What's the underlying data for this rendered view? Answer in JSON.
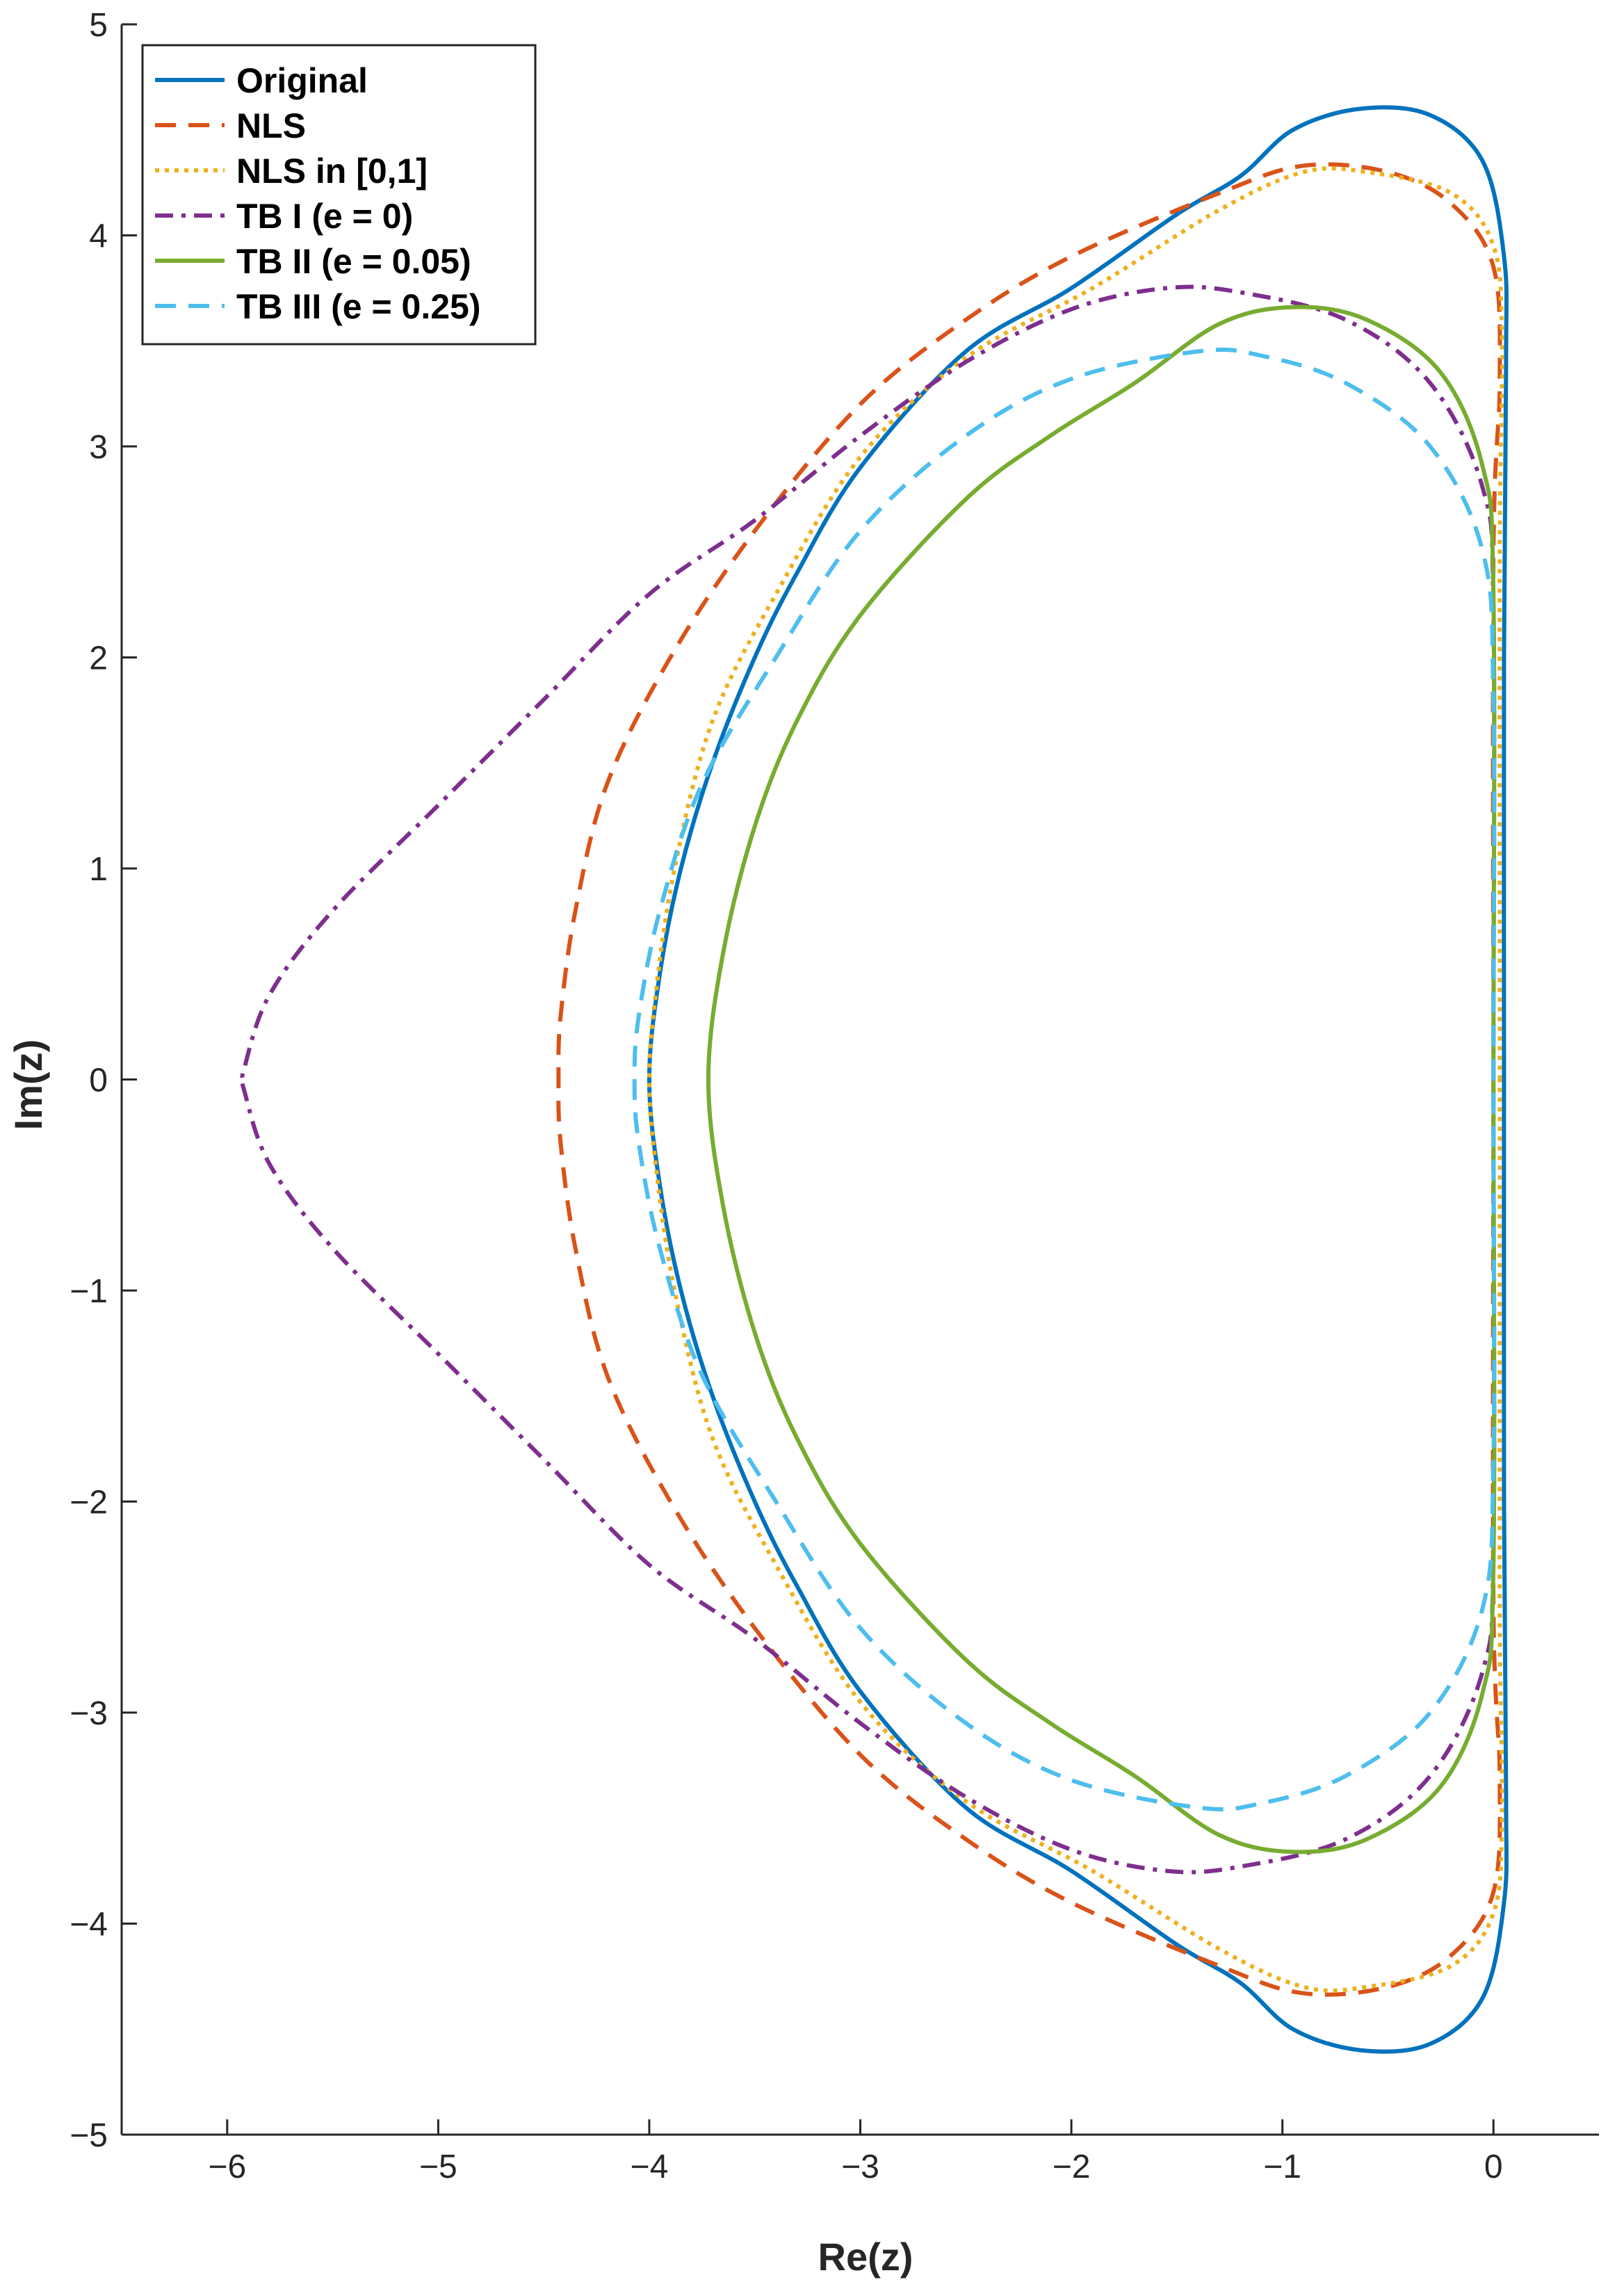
{
  "chart_data": {
    "type": "line",
    "xlabel": "Re(z)",
    "ylabel": "Im(z)",
    "xlim": [
      -6.5,
      0.5
    ],
    "ylim": [
      -5,
      5
    ],
    "xticks": [
      -6,
      -5,
      -4,
      -3,
      -2,
      -1,
      0
    ],
    "yticks": [
      -5,
      -4,
      -3,
      -2,
      -1,
      0,
      1,
      2,
      3,
      4,
      5
    ],
    "xtick_labels": [
      "−6",
      "−5",
      "−4",
      "−3",
      "−2",
      "−1",
      "0"
    ],
    "ytick_labels": [
      "−5",
      "−4",
      "−3",
      "−2",
      "−1",
      "0",
      "1",
      "2",
      "3",
      "4",
      "5"
    ],
    "grid": false,
    "legend_position": "top-left",
    "series": [
      {
        "name": "Original",
        "color": "#0072BD",
        "dash": "solid",
        "symmetric_about_x_axis": true,
        "upper_points": [
          [
            0.05,
            0
          ],
          [
            0.05,
            2
          ],
          [
            0.06,
            3.4
          ],
          [
            0.05,
            3.9
          ],
          [
            -0.05,
            4.35
          ],
          [
            -0.3,
            4.57
          ],
          [
            -0.63,
            4.6
          ],
          [
            -0.95,
            4.5
          ],
          [
            -1.2,
            4.28
          ],
          [
            -1.5,
            4.1
          ],
          [
            -2.0,
            3.75
          ],
          [
            -2.5,
            3.45
          ],
          [
            -3.0,
            2.9
          ],
          [
            -3.3,
            2.4
          ],
          [
            -3.5,
            2.0
          ],
          [
            -3.7,
            1.5
          ],
          [
            -3.85,
            1.0
          ],
          [
            -3.95,
            0.5
          ],
          [
            -4.0,
            0
          ]
        ]
      },
      {
        "name": "NLS",
        "color": "#D95319",
        "dash": "dashed",
        "symmetric_about_x_axis": true,
        "upper_points": [
          [
            0.0,
            0
          ],
          [
            0.0,
            2.5
          ],
          [
            0.03,
            3.3
          ],
          [
            0.0,
            3.85
          ],
          [
            -0.2,
            4.15
          ],
          [
            -0.5,
            4.3
          ],
          [
            -0.9,
            4.33
          ],
          [
            -1.3,
            4.2
          ],
          [
            -2.0,
            3.9
          ],
          [
            -2.5,
            3.6
          ],
          [
            -3.0,
            3.2
          ],
          [
            -3.5,
            2.6
          ],
          [
            -3.9,
            2.0
          ],
          [
            -4.2,
            1.4
          ],
          [
            -4.35,
            0.8
          ],
          [
            -4.42,
            0.3
          ],
          [
            -4.43,
            0
          ]
        ]
      },
      {
        "name": "NLS in [0,1]",
        "color": "#EDB120",
        "dash": "dotted",
        "symmetric_about_x_axis": true,
        "upper_points": [
          [
            0.03,
            0
          ],
          [
            0.03,
            2.5
          ],
          [
            0.04,
            3.5
          ],
          [
            0.0,
            3.95
          ],
          [
            -0.2,
            4.2
          ],
          [
            -0.6,
            4.3
          ],
          [
            -0.9,
            4.3
          ],
          [
            -1.3,
            4.12
          ],
          [
            -1.9,
            3.75
          ],
          [
            -2.5,
            3.42
          ],
          [
            -3.0,
            2.95
          ],
          [
            -3.4,
            2.3
          ],
          [
            -3.7,
            1.7
          ],
          [
            -3.88,
            1.0
          ],
          [
            -3.97,
            0.4
          ],
          [
            -4.0,
            0
          ]
        ]
      },
      {
        "name": "TB I (e = 0)",
        "color": "#7E2F8E",
        "dash": "dashdot",
        "symmetric_about_x_axis": true,
        "upper_points": [
          [
            0.0,
            0
          ],
          [
            0.0,
            2.2
          ],
          [
            -0.05,
            2.8
          ],
          [
            -0.3,
            3.3
          ],
          [
            -0.7,
            3.6
          ],
          [
            -1.2,
            3.73
          ],
          [
            -1.55,
            3.75
          ],
          [
            -2.0,
            3.65
          ],
          [
            -2.5,
            3.4
          ],
          [
            -3.0,
            3.05
          ],
          [
            -3.5,
            2.65
          ],
          [
            -4.0,
            2.3
          ],
          [
            -4.5,
            1.8
          ],
          [
            -5.0,
            1.3
          ],
          [
            -5.5,
            0.8
          ],
          [
            -5.8,
            0.4
          ],
          [
            -5.92,
            0.05
          ],
          [
            -5.92,
            0
          ]
        ]
      },
      {
        "name": "TB II (e = 0.05)",
        "color": "#77AC30",
        "dash": "solid",
        "symmetric_about_x_axis": true,
        "upper_points": [
          [
            0.0,
            0
          ],
          [
            0.0,
            2.3
          ],
          [
            -0.05,
            2.9
          ],
          [
            -0.25,
            3.35
          ],
          [
            -0.6,
            3.6
          ],
          [
            -0.95,
            3.66
          ],
          [
            -1.3,
            3.58
          ],
          [
            -1.7,
            3.3
          ],
          [
            -2.1,
            3.05
          ],
          [
            -2.5,
            2.75
          ],
          [
            -3.0,
            2.2
          ],
          [
            -3.3,
            1.7
          ],
          [
            -3.5,
            1.2
          ],
          [
            -3.65,
            0.6
          ],
          [
            -3.72,
            0
          ]
        ]
      },
      {
        "name": "TB III (e = 0.25)",
        "color": "#4DBEEE",
        "dash": "dashed",
        "symmetric_about_x_axis": true,
        "upper_points": [
          [
            0.0,
            0
          ],
          [
            0.0,
            1.8
          ],
          [
            -0.05,
            2.5
          ],
          [
            -0.3,
            3.0
          ],
          [
            -0.7,
            3.3
          ],
          [
            -1.1,
            3.43
          ],
          [
            -1.4,
            3.45
          ],
          [
            -2.0,
            3.32
          ],
          [
            -2.5,
            3.05
          ],
          [
            -3.0,
            2.6
          ],
          [
            -3.4,
            2.0
          ],
          [
            -3.75,
            1.4
          ],
          [
            -3.95,
            0.8
          ],
          [
            -4.05,
            0.3
          ],
          [
            -4.07,
            0
          ]
        ]
      }
    ]
  }
}
